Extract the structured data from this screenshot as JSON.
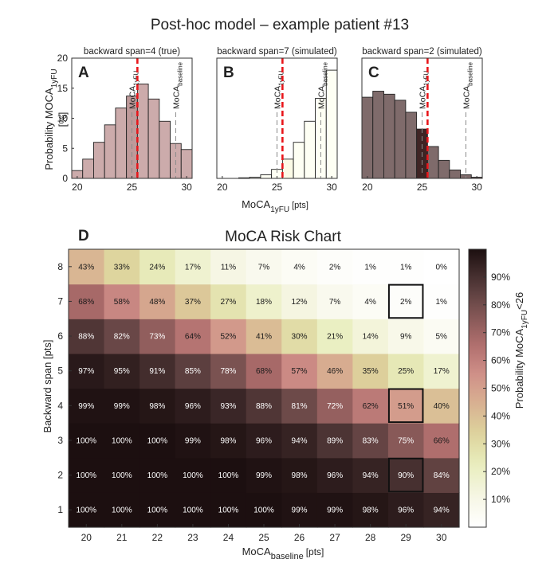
{
  "figure_title": "Post-hoc model – example patient #13",
  "chart_data": [
    {
      "type": "bar",
      "panel": "A",
      "title": "backward span=4 (true)",
      "x": [
        20,
        21,
        22,
        23,
        24,
        25,
        26,
        27,
        28,
        29,
        30
      ],
      "values": [
        1.3,
        3.2,
        6.0,
        8.9,
        11.7,
        13.7,
        15.7,
        13.2,
        9.5,
        5.8,
        4.8
      ],
      "highlight_x": 25,
      "ylim": [
        0,
        20
      ],
      "yticks": [
        "0",
        "5",
        "10",
        "15",
        "20"
      ],
      "xticks": [
        "20",
        "25",
        "30"
      ],
      "ylabel": "Probability MOCA",
      "ylabel_sub": "1yFU",
      "ylabel_unit": "[%]",
      "xlabel": "",
      "mark_1yfu": {
        "x": 25,
        "label": "MoCA",
        "sub": "1yFU"
      },
      "mark_baseline": {
        "x": 29,
        "label": "MoCA",
        "sub": "baseline"
      },
      "threshold": 26
    },
    {
      "type": "bar",
      "panel": "B",
      "title": "backward span=7 (simulated)",
      "x": [
        20,
        21,
        22,
        23,
        24,
        25,
        26,
        27,
        28,
        29,
        30
      ],
      "values": [
        0,
        0,
        0.1,
        0.2,
        0.6,
        1.5,
        3.2,
        6.0,
        9.5,
        13.3,
        18.0
      ],
      "highlight_x": 26,
      "ylim": [
        0,
        20
      ],
      "xticks": [
        "20",
        "25",
        "30"
      ],
      "xlabel": "MoCA",
      "xlabel_sub": "1yFU",
      "xlabel_unit": "[pts]",
      "mark_1yfu": {
        "x": 25,
        "label": "MoCA",
        "sub": "1yFU"
      },
      "mark_baseline": {
        "x": 29,
        "label": "MoCA",
        "sub": "baseline"
      },
      "threshold": 26
    },
    {
      "type": "bar",
      "panel": "C",
      "title": "backward span=2 (simulated)",
      "x": [
        20,
        21,
        22,
        23,
        24,
        25,
        26,
        27,
        28,
        29,
        30
      ],
      "values": [
        13.5,
        14.5,
        14.0,
        13.0,
        11.0,
        8.2,
        5.3,
        3.0,
        1.4,
        0.6,
        0.2
      ],
      "highlight_x": 25,
      "ylim": [
        0,
        20
      ],
      "xticks": [
        "20",
        "25",
        "30"
      ],
      "xlabel": "",
      "mark_1yfu": {
        "x": 25,
        "label": "MoCA",
        "sub": "1yFU"
      },
      "mark_baseline": {
        "x": 29,
        "label": "MoCA",
        "sub": "baseline"
      },
      "threshold": 26
    },
    {
      "type": "heatmap",
      "panel": "D",
      "title": "MoCA Risk Chart",
      "x": [
        20,
        21,
        22,
        23,
        24,
        25,
        26,
        27,
        28,
        29,
        30
      ],
      "y": [
        1,
        2,
        3,
        4,
        5,
        6,
        7,
        8
      ],
      "xlabel": "MoCA",
      "xlabel_sub": "baseline",
      "xlabel_unit": "[pts]",
      "ylabel": "Backward span [pts]",
      "values": [
        [
          100,
          100,
          100,
          100,
          100,
          100,
          99,
          99,
          98,
          96,
          94
        ],
        [
          100,
          100,
          100,
          100,
          100,
          99,
          98,
          96,
          94,
          90,
          84
        ],
        [
          100,
          100,
          100,
          99,
          98,
          96,
          94,
          89,
          83,
          75,
          66
        ],
        [
          99,
          99,
          98,
          96,
          93,
          88,
          81,
          72,
          62,
          51,
          40
        ],
        [
          97,
          95,
          91,
          85,
          78,
          68,
          57,
          46,
          35,
          25,
          17
        ],
        [
          88,
          82,
          73,
          64,
          52,
          41,
          30,
          21,
          14,
          9,
          5
        ],
        [
          68,
          58,
          48,
          37,
          27,
          18,
          12,
          7,
          4,
          2,
          1
        ],
        [
          43,
          33,
          24,
          17,
          11,
          7,
          4,
          2,
          1,
          1,
          0
        ]
      ],
      "highlight_cells": [
        {
          "x": 29,
          "y": 2
        },
        {
          "x": 29,
          "y": 4
        },
        {
          "x": 29,
          "y": 7
        }
      ],
      "colorbar": {
        "label": "Probability MoCA",
        "label_sub": "1yFU",
        "label_suffix": "<26",
        "ticks": [
          "10%",
          "20%",
          "30%",
          "40%",
          "50%",
          "60%",
          "70%",
          "80%",
          "90%"
        ],
        "range": [
          0,
          100
        ]
      }
    }
  ],
  "colors": {
    "threshold": "#e8161b",
    "marker": "#8a8a8a",
    "border": "#111111",
    "scale": [
      "#ffffff",
      "#f6f6e4",
      "#e9eebe",
      "#ded49d",
      "#d8b191",
      "#cf8e88",
      "#ad6c6b",
      "#7b5352",
      "#4c3434",
      "#1c0f10"
    ]
  }
}
